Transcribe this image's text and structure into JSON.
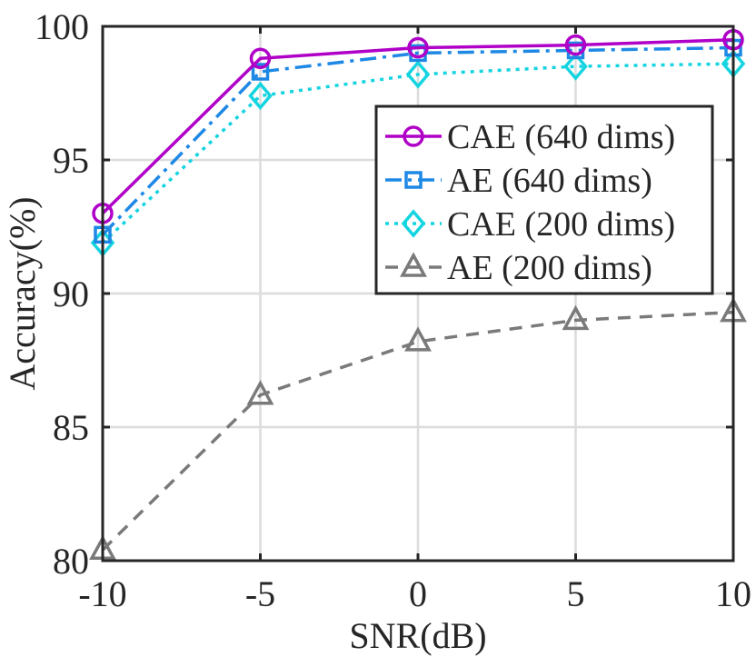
{
  "chart_data": {
    "type": "line",
    "title": "",
    "xlabel": "SNR(dB)",
    "ylabel": "Accuracy(%)",
    "x": [
      -10,
      -5,
      0,
      5,
      10
    ],
    "x_tick_labels": [
      "-10",
      "-5",
      "0",
      "5",
      "10"
    ],
    "y_tick_values": [
      80,
      85,
      90,
      95,
      100
    ],
    "y_tick_labels": [
      "80",
      "85",
      "90",
      "95",
      "100"
    ],
    "xlim": [
      -10,
      10
    ],
    "ylim": [
      80,
      100
    ],
    "grid": true,
    "legend_position": "top-right",
    "series": [
      {
        "name": "CAE (640 dims)",
        "values": [
          93.0,
          98.8,
          99.2,
          99.3,
          99.5
        ],
        "color": "#b000c8",
        "marker": "circle",
        "linestyle": "solid"
      },
      {
        "name": "AE (640 dims)",
        "values": [
          92.2,
          98.3,
          99.0,
          99.1,
          99.2
        ],
        "color": "#1e88e5",
        "marker": "square",
        "linestyle": "dashdot"
      },
      {
        "name": "CAE (200 dims)",
        "values": [
          91.9,
          97.4,
          98.2,
          98.5,
          98.6
        ],
        "color": "#14d4e0",
        "marker": "diamond",
        "linestyle": "dotted"
      },
      {
        "name": "AE (200 dims)",
        "values": [
          80.4,
          86.2,
          88.2,
          89.0,
          89.3
        ],
        "color": "#7a7a7a",
        "marker": "triangle",
        "linestyle": "dashed"
      }
    ]
  }
}
